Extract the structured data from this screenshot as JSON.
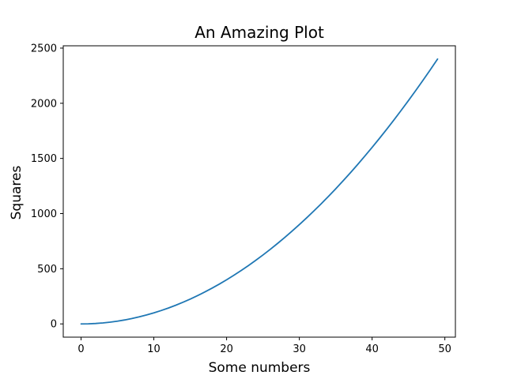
{
  "chart_data": {
    "type": "line",
    "title": "An Amazing Plot",
    "xlabel": "Some numbers",
    "ylabel": "Squares",
    "xlim": [
      -2.45,
      51.45
    ],
    "ylim": [
      -120.05,
      2521.05
    ],
    "xticks": [
      0,
      10,
      20,
      30,
      40,
      50
    ],
    "yticks": [
      0,
      500,
      1000,
      1500,
      2000,
      2500
    ],
    "x": [
      0,
      1,
      2,
      3,
      4,
      5,
      6,
      7,
      8,
      9,
      10,
      11,
      12,
      13,
      14,
      15,
      16,
      17,
      18,
      19,
      20,
      21,
      22,
      23,
      24,
      25,
      26,
      27,
      28,
      29,
      30,
      31,
      32,
      33,
      34,
      35,
      36,
      37,
      38,
      39,
      40,
      41,
      42,
      43,
      44,
      45,
      46,
      47,
      48,
      49
    ],
    "series": [
      {
        "color": "#1f77b4",
        "values": [
          0,
          1,
          4,
          9,
          16,
          25,
          36,
          49,
          64,
          81,
          100,
          121,
          144,
          169,
          196,
          225,
          256,
          289,
          324,
          361,
          400,
          441,
          484,
          529,
          576,
          625,
          676,
          729,
          784,
          841,
          900,
          961,
          1024,
          1089,
          1156,
          1225,
          1296,
          1369,
          1444,
          1521,
          1600,
          1681,
          1764,
          1849,
          1936,
          2025,
          2116,
          2209,
          2304,
          2401
        ]
      }
    ],
    "grid": false,
    "legend": "none"
  }
}
